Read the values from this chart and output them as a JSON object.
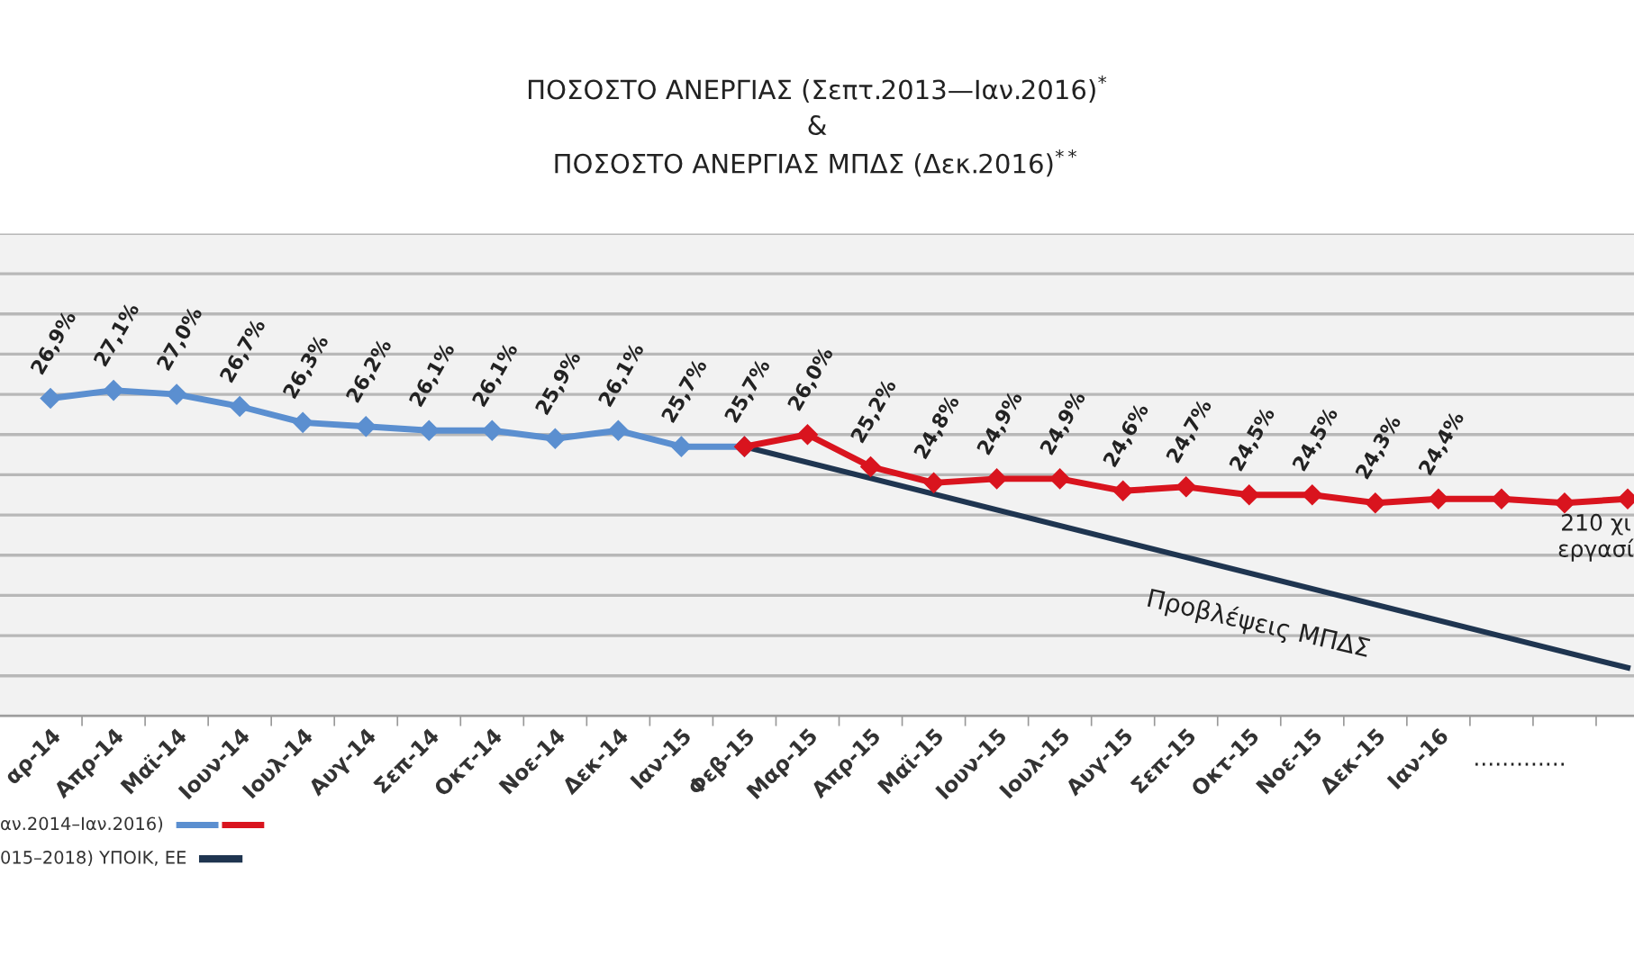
{
  "chart_data": {
    "type": "line",
    "title": "ΠΟΣΟΣΤΟ ΑΝΕΡΓΙΑΣ (Σεπτ.2013—Ιαν.2016)$^{*}$\n&\nΠΟΣΟΣΤΟ ΑΝΕΡΓΙΑΣ ΜΠΔΣ (Δεκ.2016)$^{**}$",
    "categories": [
      "αρ-14",
      "Απρ-14",
      "Μαϊ-14",
      "Ιουν-14",
      "Ιουλ-14",
      "Αυγ-14",
      "Σεπ-14",
      "Οκτ-14",
      "Νοε-14",
      "Δεκ-14",
      "Ιαν-15",
      "Φεβ-15",
      "Μαρ-15",
      "Απρ-15",
      "Μαϊ-15",
      "Ιουν-15",
      "Ιουλ-15",
      "Αυγ-15",
      "Σεπ-15",
      "Οκτ-15",
      "Νοε-15",
      "Δεκ-15",
      "Ιαν-16",
      null,
      null,
      null
    ],
    "series": [
      {
        "name": "αν.2014–Ιαν.2016)",
        "color": "#5b8fd0",
        "marker": "diamond",
        "values": [
          26.9,
          27.1,
          27.0,
          26.7,
          26.3,
          26.2,
          26.1,
          26.1,
          25.9,
          26.1,
          25.7,
          25.7,
          null,
          null,
          null,
          null,
          null,
          null,
          null,
          null,
          null,
          null,
          null,
          null,
          null,
          null
        ],
        "value_labels": [
          "26,9%",
          "27,1%",
          "27,0%",
          "26,7%",
          "26,3%",
          "26,2%",
          "26,1%",
          "26,1%",
          "25,9%",
          "26,1%",
          "25,7%",
          "25,7%",
          null,
          null,
          null,
          null,
          null,
          null,
          null,
          null,
          null,
          null,
          null,
          null,
          null,
          null
        ]
      },
      {
        "color": "#d9141e",
        "marker": "diamond",
        "values": [
          null,
          null,
          null,
          null,
          null,
          null,
          null,
          null,
          null,
          null,
          null,
          25.7,
          26.0,
          25.2,
          24.8,
          24.9,
          24.9,
          24.6,
          24.7,
          24.5,
          24.5,
          24.3,
          24.4,
          24.4,
          24.3,
          24.4
        ],
        "value_labels": [
          null,
          null,
          null,
          null,
          null,
          null,
          null,
          null,
          null,
          null,
          null,
          null,
          "26,0%",
          "25,2%",
          "24,8%",
          "24,9%",
          "24,9%",
          "24,6%",
          "24,7%",
          "24,5%",
          "24,5%",
          "24,3%",
          "24,4%",
          null,
          null,
          null
        ]
      },
      {
        "name": "015–2018) ΥΠΟΙΚ, ΕΕ",
        "color": "#1f3550",
        "marker": "none",
        "values": [
          null,
          null,
          null,
          null,
          null,
          null,
          null,
          null,
          null,
          null,
          null,
          25.7,
          null,
          null,
          null,
          null,
          null,
          null,
          null,
          null,
          null,
          null,
          null,
          null,
          null,
          20.2
        ]
      }
    ],
    "ylim": [
      19,
      31
    ],
    "yticks": [
      {
        "value": 19,
        "label": null
      },
      {
        "value": 20,
        "label": null
      },
      {
        "value": 21,
        "label": null
      },
      {
        "value": 22,
        "label": null
      },
      {
        "value": 23,
        "label": null
      },
      {
        "value": 24,
        "label": null
      },
      {
        "value": 25,
        "label": null
      },
      {
        "value": 26,
        "label": null
      },
      {
        "value": 27,
        "label": null
      },
      {
        "value": 28,
        "label": null
      },
      {
        "value": 29,
        "label": null
      },
      {
        "value": 30,
        "label": null
      },
      {
        "value": 31,
        "label": null
      }
    ],
    "tick_labels": "x",
    "grid": "y",
    "legend": "bottom left",
    "annotations": [
      "Προβλέψεις ΜΠΔΣ",
      "210 χι\nεργασί",
      "............."
    ]
  }
}
